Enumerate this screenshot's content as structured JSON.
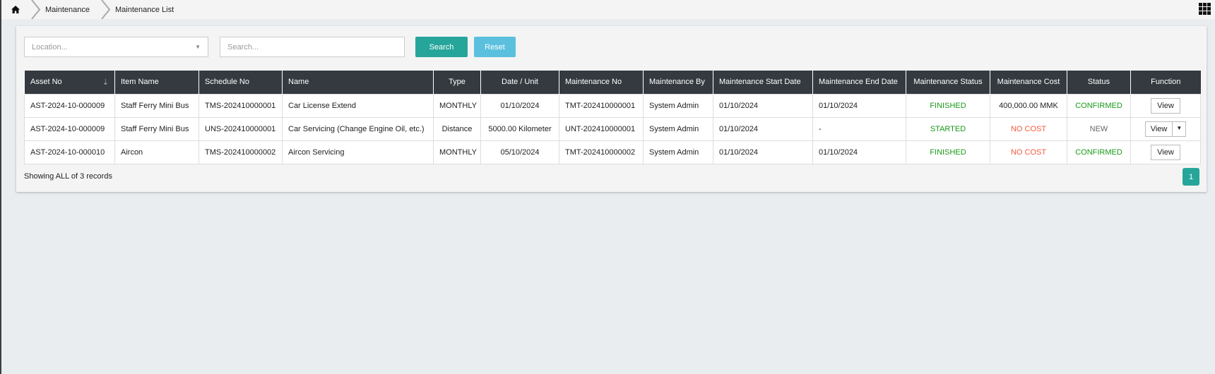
{
  "breadcrumb": {
    "items": [
      "Maintenance",
      "Maintenance List"
    ]
  },
  "filters": {
    "location_placeholder": "Location...",
    "search_placeholder": "Search...",
    "search_label": "Search",
    "reset_label": "Reset"
  },
  "colors": {
    "search": "#26a69a",
    "reset": "#5bc0de",
    "header": "#343a40",
    "ok": "#1a9a1a",
    "alert": "#f55a3c"
  },
  "table": {
    "headers": [
      "Asset No",
      "Item Name",
      "Schedule No",
      "Name",
      "Type",
      "Date / Unit",
      "Maintenance No",
      "Maintenance By",
      "Maintenance Start Date",
      "Maintenance End Date",
      "Maintenance Status",
      "Maintenance Cost",
      "Status",
      "Function"
    ],
    "rows": [
      [
        "AST-2024-10-000009",
        "Staff Ferry Mini Bus",
        "TMS-202410000001",
        "Car License Extend",
        "MONTHLY",
        "01/10/2024",
        "TMT-202410000001",
        "System Admin",
        "01/10/2024",
        "01/10/2024",
        "FINISHED",
        "400,000.00 MMK",
        "CONFIRMED",
        "View"
      ],
      [
        "AST-2024-10-000009",
        "Staff Ferry Mini Bus",
        "UNS-202410000001",
        "Car Servicing (Change Engine Oil, etc.)",
        "Distance",
        "5000.00 Kilometer",
        "UNT-202410000001",
        "System Admin",
        "01/10/2024",
        "-",
        "STARTED",
        "NO COST",
        "NEW",
        "View"
      ],
      [
        "AST-2024-10-000010",
        "Aircon",
        "TMS-202410000002",
        "Aircon Servicing",
        "MONTHLY",
        "05/10/2024",
        "TMT-202410000002",
        "System Admin",
        "01/10/2024",
        "01/10/2024",
        "FINISHED",
        "NO COST",
        "CONFIRMED",
        "View"
      ]
    ]
  },
  "footer": {
    "showing": "Showing ALL of 3 records",
    "page": "1"
  }
}
